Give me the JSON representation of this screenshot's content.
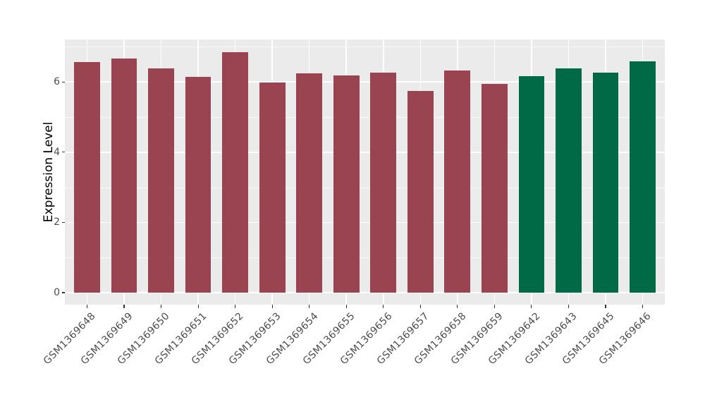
{
  "chart_data": {
    "type": "bar",
    "title": "",
    "xlabel": "",
    "ylabel": "Expression Level",
    "categories": [
      "GSM1369648",
      "GSM1369649",
      "GSM1369650",
      "GSM1369651",
      "GSM1369652",
      "GSM1369653",
      "GSM1369654",
      "GSM1369655",
      "GSM1369656",
      "GSM1369657",
      "GSM1369658",
      "GSM1369659",
      "GSM1369642",
      "GSM1369643",
      "GSM1369645",
      "GSM1369646"
    ],
    "values": [
      6.56,
      6.67,
      6.38,
      6.14,
      6.85,
      5.98,
      6.25,
      6.18,
      6.26,
      5.74,
      6.33,
      5.94,
      6.16,
      6.39,
      6.26,
      6.59
    ],
    "groups": [
      "red",
      "red",
      "red",
      "red",
      "red",
      "red",
      "red",
      "red",
      "red",
      "red",
      "red",
      "red",
      "green",
      "green",
      "green",
      "green"
    ],
    "group_colors": {
      "red": "#9B4451",
      "green": "#006A47"
    },
    "yticks": [
      0,
      2,
      4,
      6
    ],
    "minor_yticks": [
      1,
      3,
      5,
      7
    ],
    "ylim": [
      -0.34,
      7.21
    ],
    "bar_width_ratio": 0.7,
    "grid": true,
    "legend_position": "none",
    "panel_background": "#EBEBEB",
    "gridline_color": "#FFFFFF",
    "tick_color": "#333333",
    "axis_text_color": "#4D4D4D"
  }
}
